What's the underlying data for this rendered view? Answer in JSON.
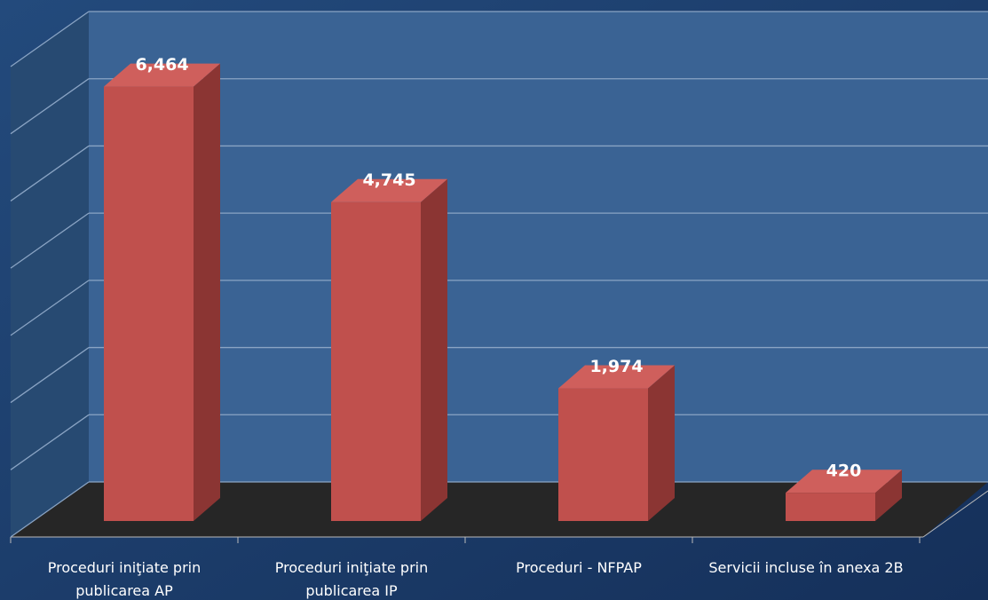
{
  "chart_data": {
    "type": "bar3d",
    "categories": [
      "Proceduri iniţiate prin publicarea AP",
      "Proceduri iniţiate prin publicarea IP",
      "Proceduri - NFPAP",
      "Servicii incluse în anexa 2B"
    ],
    "values": [
      6464,
      4745,
      1974,
      420
    ],
    "value_labels": [
      "6,464",
      "4,745",
      "1,974",
      "420"
    ],
    "color": "#c0504d",
    "ylim": [
      0,
      7000
    ],
    "yticks": [
      0,
      1000,
      2000,
      3000,
      4000,
      5000,
      6000,
      7000
    ],
    "grid": true
  }
}
